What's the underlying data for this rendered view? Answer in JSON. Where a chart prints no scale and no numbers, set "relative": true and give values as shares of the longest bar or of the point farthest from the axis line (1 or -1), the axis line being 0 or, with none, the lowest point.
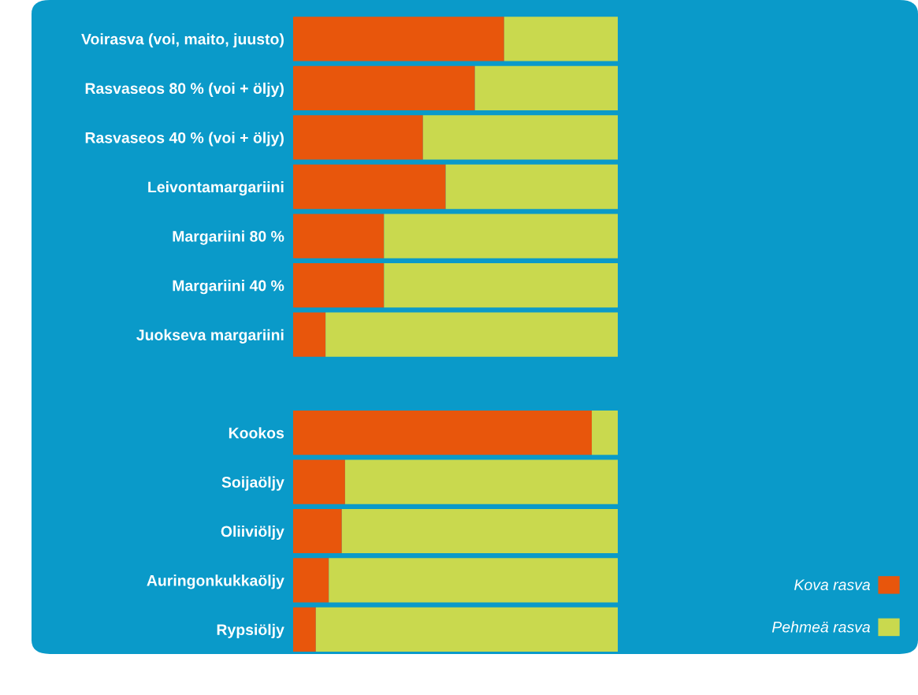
{
  "chart_data": [
    {
      "type": "bar",
      "orientation": "horizontal",
      "stacked": true,
      "relative": true,
      "legend": false,
      "categories": [
        "Voirasva (voi, maito, juusto)",
        "Rasvaseos 80 % (voi + öljy)",
        "Rasvaseos 40 % (voi + öljy)",
        "Leivontamargariini",
        "Margariini 80 %",
        "Margariini 40 %",
        "Juokseva margariini"
      ],
      "series": [
        {
          "color": "#e8560c",
          "values": [
            0.65,
            0.56,
            0.4,
            0.47,
            0.28,
            0.28,
            0.1
          ]
        },
        {
          "color": "#c9d94e",
          "values": [
            0.35,
            0.44,
            0.6,
            0.53,
            0.72,
            0.72,
            0.9
          ]
        }
      ]
    },
    {
      "type": "bar",
      "orientation": "horizontal",
      "stacked": true,
      "relative": true,
      "legend": "bottom right",
      "categories": [
        "Kookos",
        "Soijaöljy",
        "Oliiviöljy",
        "Auringonkukkaöljy",
        "Rypsiöljy"
      ],
      "series": [
        {
          "name": "Kova rasva",
          "color": "#e8560c",
          "values": [
            0.92,
            0.16,
            0.15,
            0.11,
            0.07
          ]
        },
        {
          "name": "Pehmeä rasva",
          "color": "#c9d94e",
          "values": [
            0.08,
            0.84,
            0.85,
            0.89,
            0.93
          ]
        }
      ]
    }
  ]
}
